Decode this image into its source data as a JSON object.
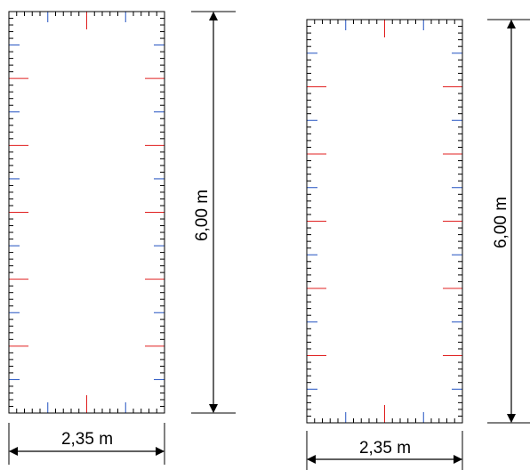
{
  "diagrams": [
    {
      "name": "left",
      "height_label": "6,00 m",
      "width_label": "2,35 m"
    },
    {
      "name": "right",
      "height_label": "6,00 m",
      "width_label": "2,35 m"
    }
  ],
  "colors": {
    "outline": "#000000",
    "tick_major": "#e02020",
    "tick_mid": "#2050c0",
    "tick_minor": "#000000"
  }
}
